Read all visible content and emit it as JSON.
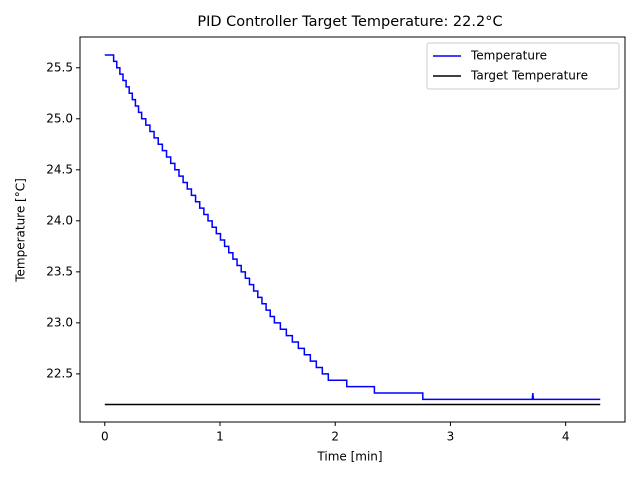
{
  "chart_data": {
    "type": "line",
    "title": "PID Controller Target Temperature: 22.2°C",
    "x_label": "Time [min]",
    "y_label": "Temperature [°C]",
    "xlim": [
      -0.215,
      4.515
    ],
    "ylim": [
      22.0285,
      25.8015
    ],
    "xticks": [
      0,
      1,
      2,
      3,
      4
    ],
    "yticks": [
      22.5,
      {
        "value": 23,
        "label": "23.0"
      },
      23.5,
      {
        "value": 24,
        "label": "24.0"
      },
      24.5,
      {
        "value": 25,
        "label": "25.0"
      },
      25.5
    ],
    "legend": "upper right",
    "series": [
      {
        "name": "Temperature",
        "color": "#0000ff",
        "x": [
          0,
          0.077,
          0.077,
          0.104,
          0.104,
          0.131,
          0.131,
          0.158,
          0.158,
          0.185,
          0.185,
          0.212,
          0.212,
          0.239,
          0.239,
          0.266,
          0.266,
          0.293,
          0.293,
          0.32,
          0.32,
          0.356,
          0.356,
          0.392,
          0.392,
          0.428,
          0.428,
          0.464,
          0.464,
          0.5,
          0.5,
          0.536,
          0.536,
          0.572,
          0.572,
          0.608,
          0.608,
          0.644,
          0.644,
          0.68,
          0.68,
          0.716,
          0.716,
          0.752,
          0.752,
          0.788,
          0.788,
          0.824,
          0.824,
          0.86,
          0.86,
          0.896,
          0.896,
          0.932,
          0.932,
          0.968,
          0.968,
          1.004,
          1.004,
          1.04,
          1.04,
          1.076,
          1.076,
          1.112,
          1.112,
          1.148,
          1.148,
          1.184,
          1.184,
          1.22,
          1.22,
          1.256,
          1.256,
          1.292,
          1.292,
          1.328,
          1.328,
          1.364,
          1.364,
          1.4,
          1.4,
          1.436,
          1.436,
          1.472,
          1.472,
          1.524,
          1.524,
          1.576,
          1.576,
          1.628,
          1.628,
          1.68,
          1.68,
          1.732,
          1.732,
          1.784,
          1.784,
          1.836,
          1.836,
          1.888,
          1.888,
          1.94,
          1.94,
          2.1,
          2.1,
          2.34,
          2.34,
          2.76,
          2.76,
          3.71,
          3.715,
          3.72,
          4.3
        ],
        "values": [
          25.625,
          25.625,
          25.5625,
          25.5625,
          25.5,
          25.5,
          25.4375,
          25.4375,
          25.375,
          25.375,
          25.3125,
          25.3125,
          25.25,
          25.25,
          25.1875,
          25.1875,
          25.125,
          25.125,
          25.0625,
          25.0625,
          25.0,
          25.0,
          24.9375,
          24.9375,
          24.875,
          24.875,
          24.8125,
          24.8125,
          24.75,
          24.75,
          24.6875,
          24.6875,
          24.625,
          24.625,
          24.5625,
          24.5625,
          24.5,
          24.5,
          24.4375,
          24.4375,
          24.375,
          24.375,
          24.3125,
          24.3125,
          24.25,
          24.25,
          24.1875,
          24.1875,
          24.125,
          24.125,
          24.0625,
          24.0625,
          24.0,
          24.0,
          23.9375,
          23.9375,
          23.875,
          23.875,
          23.8125,
          23.8125,
          23.75,
          23.75,
          23.6875,
          23.6875,
          23.625,
          23.625,
          23.5625,
          23.5625,
          23.5,
          23.5,
          23.4375,
          23.4375,
          23.375,
          23.375,
          23.3125,
          23.3125,
          23.25,
          23.25,
          23.1875,
          23.1875,
          23.125,
          23.125,
          23.0625,
          23.0625,
          23.0,
          23.0,
          22.9375,
          22.9375,
          22.875,
          22.875,
          22.8125,
          22.8125,
          22.75,
          22.75,
          22.6875,
          22.6875,
          22.625,
          22.625,
          22.5625,
          22.5625,
          22.5,
          22.5,
          22.4375,
          22.4375,
          22.375,
          22.375,
          22.3125,
          22.3125,
          22.25,
          22.25,
          22.3125,
          22.25,
          22.25
        ]
      },
      {
        "name": "Target Temperature",
        "color": "#000000",
        "x": [
          0,
          4.3
        ],
        "values": [
          22.2,
          22.2
        ]
      }
    ]
  }
}
